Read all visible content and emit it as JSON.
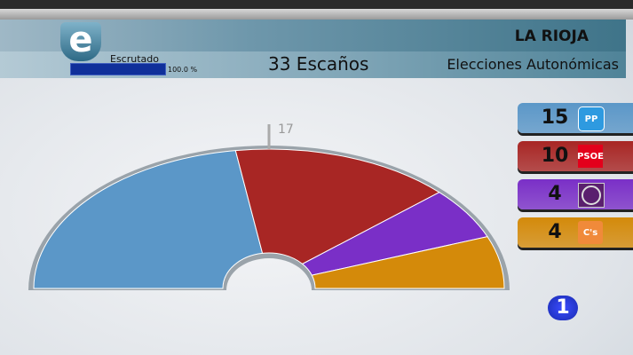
{
  "header": {
    "region": "LA RIOJA",
    "election": "Elecciones Autonómicas",
    "seats_label": "33 Escaños",
    "scrutiny_label": "Escrutado",
    "scrutiny_pct": "100.0 %",
    "scrutiny_value": 100,
    "logo_letter": "e"
  },
  "channel_logo": "1",
  "chart_data": {
    "type": "parliament",
    "total": 33,
    "majority": 17,
    "majority_label": "17",
    "series": [
      {
        "name": "PP",
        "value": 15,
        "label": "15",
        "color": "#5b97c8",
        "logo": "PP"
      },
      {
        "name": "PSOE",
        "value": 10,
        "label": "10",
        "color": "#a82624",
        "logo": "PSOE"
      },
      {
        "name": "Podemos",
        "value": 4,
        "label": "4",
        "color": "#7a2fc7",
        "logo": ""
      },
      {
        "name": "C's",
        "value": 4,
        "label": "4",
        "color": "#d48a0a",
        "logo": "C's"
      }
    ]
  }
}
